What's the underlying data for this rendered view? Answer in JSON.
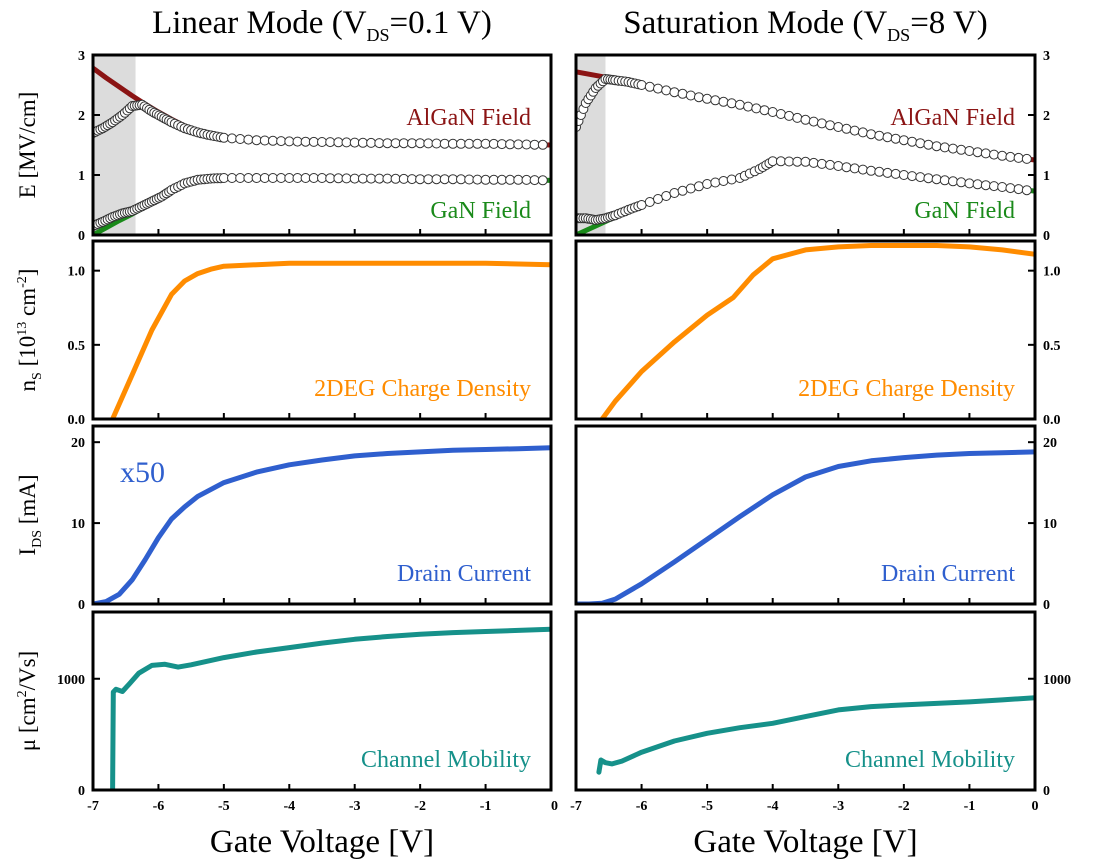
{
  "chart_data": {
    "type": "line",
    "columns": [
      {
        "id": "linear",
        "title_main": "Linear Mode (V",
        "title_sub": "DS",
        "title_rest": "=0.1 V)",
        "shaded_region": [
          -7,
          -6.35
        ]
      },
      {
        "id": "saturation",
        "title_main": "Saturation Mode (V",
        "title_sub": "DS",
        "title_rest": "=8 V)",
        "shaded_region": [
          -7,
          -6.55
        ]
      }
    ],
    "x_axis": {
      "label": "Gate Voltage",
      "unit": "[V]",
      "range": [
        -7,
        0
      ],
      "ticks": [
        -7,
        -6,
        -5,
        -4,
        -3,
        -2,
        -1,
        0
      ],
      "tick_labels": [
        "-7",
        "-6",
        "-5",
        "-4",
        "-3",
        "-2",
        "-1",
        "0"
      ]
    },
    "rows": [
      {
        "id": "field",
        "ylabel": {
          "main": "E",
          "unit": "[MV/cm]"
        },
        "ylim": [
          0,
          3
        ],
        "yticks": [
          0,
          1,
          2,
          3
        ],
        "ytick_labels": [
          "0",
          "1",
          "2",
          "3"
        ],
        "series": [
          {
            "name": "AlGaN Field",
            "color": "#8b1414",
            "data": {
              "linear": {
                "x": [
                  -7,
                  -6.8,
                  -6.6,
                  -6.4,
                  -6.2,
                  -6.0,
                  -5.8,
                  -5.6,
                  -5.4,
                  -5.2,
                  -5.0,
                  -4.5,
                  -4.0,
                  -3.5,
                  -3.0,
                  -2.5,
                  -2.0,
                  -1.5,
                  -1.0,
                  -0.5,
                  0
                ],
                "y": [
                  2.78,
                  2.62,
                  2.47,
                  2.32,
                  2.18,
                  2.05,
                  1.93,
                  1.82,
                  1.73,
                  1.66,
                  1.62,
                  1.58,
                  1.56,
                  1.55,
                  1.54,
                  1.53,
                  1.53,
                  1.52,
                  1.52,
                  1.51,
                  1.5
                ]
              },
              "saturation": {
                "x": [
                  -7,
                  -6.5,
                  -6,
                  -5.5,
                  -5,
                  -4.5,
                  -4,
                  -3.5,
                  -3,
                  -2.5,
                  -2,
                  -1.5,
                  -1,
                  -0.5,
                  0
                ],
                "y": [
                  2.72,
                  2.62,
                  2.5,
                  2.38,
                  2.27,
                  2.17,
                  2.05,
                  1.92,
                  1.8,
                  1.68,
                  1.58,
                  1.48,
                  1.4,
                  1.32,
                  1.25
                ]
              }
            }
          },
          {
            "name": "GaN Field",
            "color": "#1a8a1a",
            "data": {
              "linear": {
                "x": [
                  -7,
                  -6.8,
                  -6.6,
                  -6.4,
                  -6.2,
                  -6.0,
                  -5.8,
                  -5.6,
                  -5.4,
                  -5.2,
                  -5.0,
                  -4.5,
                  -4.0,
                  -3.5,
                  -3.0,
                  -2.5,
                  -2.0,
                  -1.5,
                  -1.0,
                  -0.5,
                  0
                ],
                "y": [
                  0.0,
                  0.12,
                  0.24,
                  0.35,
                  0.47,
                  0.6,
                  0.75,
                  0.86,
                  0.92,
                  0.94,
                  0.95,
                  0.95,
                  0.95,
                  0.95,
                  0.94,
                  0.94,
                  0.93,
                  0.93,
                  0.92,
                  0.92,
                  0.91
                ]
              },
              "saturation": {
                "x": [
                  -7,
                  -6.5,
                  -6,
                  -5.5,
                  -5,
                  -4.5,
                  -4.2,
                  -4,
                  -3.5,
                  -3,
                  -2.5,
                  -2,
                  -1.5,
                  -1,
                  -0.5,
                  0
                ],
                "y": [
                  0.0,
                  0.25,
                  0.5,
                  0.7,
                  0.85,
                  0.95,
                  1.1,
                  1.23,
                  1.22,
                  1.15,
                  1.07,
                  1.0,
                  0.93,
                  0.86,
                  0.8,
                  0.73
                ]
              }
            }
          },
          {
            "name": "AlGaN Field (markers)",
            "color": "#000000",
            "marker": "open-circle",
            "data": {
              "linear": {
                "x": [
                  -7,
                  -6.85,
                  -6.7,
                  -6.55,
                  -6.4,
                  -6.25,
                  -6.1,
                  -5.95,
                  -5.8,
                  -5.6,
                  -5.4,
                  -5.2,
                  -5.0,
                  -4.5,
                  -4.0,
                  -3.5,
                  -3.0,
                  -2.5,
                  -2.0,
                  -1.5,
                  -1.0,
                  -0.5,
                  0
                ],
                "y": [
                  1.7,
                  1.78,
                  1.88,
                  2.0,
                  2.15,
                  2.17,
                  2.06,
                  1.97,
                  1.88,
                  1.78,
                  1.71,
                  1.66,
                  1.62,
                  1.58,
                  1.56,
                  1.55,
                  1.54,
                  1.53,
                  1.53,
                  1.52,
                  1.52,
                  1.51,
                  1.5
                ]
              },
              "saturation": {
                "x": [
                  -7,
                  -6.85,
                  -6.7,
                  -6.55,
                  -6.4,
                  -6.2,
                  -6.0,
                  -5.5,
                  -5.0,
                  -4.5,
                  -4.0,
                  -3.5,
                  -3.0,
                  -2.5,
                  -2.0,
                  -1.5,
                  -1.0,
                  -0.5,
                  0
                ],
                "y": [
                  1.8,
                  2.2,
                  2.45,
                  2.6,
                  2.58,
                  2.55,
                  2.5,
                  2.38,
                  2.27,
                  2.17,
                  2.05,
                  1.92,
                  1.8,
                  1.68,
                  1.58,
                  1.48,
                  1.4,
                  1.32,
                  1.25
                ]
              }
            }
          },
          {
            "name": "GaN Field (markers)",
            "color": "#000000",
            "marker": "open-circle",
            "data": {
              "linear": {
                "x": [
                  -7,
                  -6.85,
                  -6.7,
                  -6.55,
                  -6.4,
                  -6.25,
                  -6.1,
                  -5.95,
                  -5.8,
                  -5.6,
                  -5.4,
                  -5.2,
                  -5.0,
                  -4.5,
                  -4.0,
                  -3.5,
                  -3.0,
                  -2.5,
                  -2.0,
                  -1.5,
                  -1.0,
                  -0.5,
                  0
                ],
                "y": [
                  0.15,
                  0.22,
                  0.3,
                  0.36,
                  0.4,
                  0.48,
                  0.56,
                  0.64,
                  0.75,
                  0.86,
                  0.92,
                  0.94,
                  0.95,
                  0.95,
                  0.95,
                  0.95,
                  0.94,
                  0.94,
                  0.93,
                  0.93,
                  0.92,
                  0.92,
                  0.91
                ]
              },
              "saturation": {
                "x": [
                  -7,
                  -6.85,
                  -6.7,
                  -6.55,
                  -6.4,
                  -6.2,
                  -6.0,
                  -5.5,
                  -5.0,
                  -4.5,
                  -4.2,
                  -4.0,
                  -3.5,
                  -3.0,
                  -2.5,
                  -2.0,
                  -1.5,
                  -1.0,
                  -0.5,
                  0
                ],
                "y": [
                  0.28,
                  0.28,
                  0.25,
                  0.28,
                  0.33,
                  0.42,
                  0.5,
                  0.7,
                  0.85,
                  0.95,
                  1.1,
                  1.23,
                  1.22,
                  1.15,
                  1.07,
                  1.0,
                  0.93,
                  0.86,
                  0.8,
                  0.73
                ]
              }
            }
          }
        ]
      },
      {
        "id": "ns",
        "ylabel": {
          "main": "n",
          "main_sub": "S",
          "unit_open": "[10",
          "unit_sup": "13",
          "unit_mid": " cm",
          "unit_sup2": "-2",
          "unit_close": "]"
        },
        "ylim": [
          0,
          1.2
        ],
        "yticks": [
          0.0,
          0.5,
          1.0
        ],
        "ytick_labels": [
          "0.0",
          "0.5",
          "1.0"
        ],
        "series": [
          {
            "name": "2DEG Charge Density",
            "color": "#ff8c00",
            "data": {
              "linear": {
                "x": [
                  -6.7,
                  -6.4,
                  -6.1,
                  -5.8,
                  -5.6,
                  -5.4,
                  -5.2,
                  -5.0,
                  -4.5,
                  -4.0,
                  -3.0,
                  -2.0,
                  -1.0,
                  0
                ],
                "y": [
                  0.0,
                  0.3,
                  0.6,
                  0.84,
                  0.93,
                  0.98,
                  1.01,
                  1.03,
                  1.04,
                  1.05,
                  1.05,
                  1.05,
                  1.05,
                  1.04
                ]
              },
              "saturation": {
                "x": [
                  -6.6,
                  -6.4,
                  -6.0,
                  -5.5,
                  -5.0,
                  -4.6,
                  -4.3,
                  -4.0,
                  -3.5,
                  -3.0,
                  -2.5,
                  -2.0,
                  -1.5,
                  -1.0,
                  -0.5,
                  0
                ],
                "y": [
                  0.0,
                  0.12,
                  0.32,
                  0.52,
                  0.7,
                  0.82,
                  0.97,
                  1.08,
                  1.14,
                  1.16,
                  1.17,
                  1.17,
                  1.17,
                  1.16,
                  1.14,
                  1.11
                ]
              }
            }
          }
        ]
      },
      {
        "id": "ids",
        "ylabel": {
          "main": "I",
          "main_sub": "DS",
          "unit": "[mA]"
        },
        "ylim": [
          0,
          22
        ],
        "yticks": [
          0,
          10,
          20
        ],
        "ytick_labels": [
          "0",
          "10",
          "20"
        ],
        "annotations": [
          {
            "panel": "linear",
            "text": "x50",
            "color": "#2f5fce"
          }
        ],
        "series": [
          {
            "name": "Drain Current",
            "color": "#2f5fce",
            "data": {
              "linear": {
                "x": [
                  -7,
                  -6.8,
                  -6.6,
                  -6.4,
                  -6.2,
                  -6.0,
                  -5.8,
                  -5.6,
                  -5.4,
                  -5.0,
                  -4.5,
                  -4.0,
                  -3.5,
                  -3.0,
                  -2.5,
                  -2.0,
                  -1.5,
                  -1.0,
                  -0.5,
                  0
                ],
                "y": [
                  0.0,
                  0.3,
                  1.2,
                  3.0,
                  5.5,
                  8.2,
                  10.5,
                  12.0,
                  13.3,
                  15.0,
                  16.3,
                  17.2,
                  17.8,
                  18.3,
                  18.6,
                  18.8,
                  19.0,
                  19.1,
                  19.2,
                  19.3
                ]
              },
              "saturation": {
                "x": [
                  -7,
                  -6.8,
                  -6.6,
                  -6.4,
                  -6.0,
                  -5.5,
                  -5.0,
                  -4.5,
                  -4.0,
                  -3.5,
                  -3.0,
                  -2.5,
                  -2.0,
                  -1.5,
                  -1.0,
                  -0.5,
                  0
                ],
                "y": [
                  0.0,
                  0.0,
                  0.1,
                  0.6,
                  2.5,
                  5.2,
                  8.0,
                  10.8,
                  13.5,
                  15.7,
                  17.0,
                  17.7,
                  18.1,
                  18.4,
                  18.6,
                  18.7,
                  18.8
                ]
              }
            }
          }
        ]
      },
      {
        "id": "mobility",
        "ylabel": {
          "main": "μ",
          "unit_open": "[cm",
          "unit_sup": "2",
          "unit_close": "/Vs]"
        },
        "ylim": [
          0,
          1600
        ],
        "yticks": [
          0,
          1000
        ],
        "ytick_labels": [
          "0",
          "1000"
        ],
        "series": [
          {
            "name": "Channel Mobility",
            "color": "#16918a",
            "data": {
              "linear": {
                "x": [
                  -6.7,
                  -6.69,
                  -6.65,
                  -6.55,
                  -6.45,
                  -6.3,
                  -6.1,
                  -5.9,
                  -5.7,
                  -5.5,
                  -5.0,
                  -4.5,
                  -4.0,
                  -3.5,
                  -3.0,
                  -2.5,
                  -2.0,
                  -1.5,
                  -1.0,
                  -0.5,
                  0
                ],
                "y": [
                  0,
                  880,
                  905,
                  885,
                  950,
                  1050,
                  1120,
                  1130,
                  1105,
                  1125,
                  1190,
                  1240,
                  1280,
                  1320,
                  1355,
                  1380,
                  1400,
                  1415,
                  1425,
                  1435,
                  1445
                ]
              },
              "saturation": {
                "x": [
                  -6.65,
                  -6.62,
                  -6.55,
                  -6.45,
                  -6.3,
                  -6.0,
                  -5.5,
                  -5.0,
                  -4.5,
                  -4.0,
                  -3.5,
                  -3.0,
                  -2.5,
                  -2.0,
                  -1.5,
                  -1.0,
                  -0.5,
                  0
                ],
                "y": [
                  160,
                  270,
                  245,
                  235,
                  260,
                  340,
                  440,
                  510,
                  560,
                  600,
                  660,
                  720,
                  750,
                  765,
                  778,
                  792,
                  810,
                  830
                ]
              }
            }
          }
        ]
      }
    ]
  }
}
